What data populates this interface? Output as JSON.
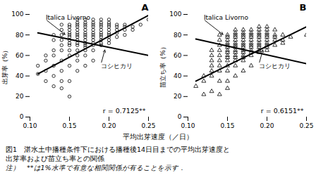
{
  "chart_data": [
    {
      "type": "scatter",
      "title": "A",
      "ylabel": "出芽率（%）",
      "marker": "circle",
      "color": "#000000",
      "x": [
        0.11,
        0.11,
        0.12,
        0.12,
        0.12,
        0.12,
        0.13,
        0.13,
        0.13,
        0.13,
        0.13,
        0.13,
        0.13,
        0.14,
        0.14,
        0.14,
        0.14,
        0.14,
        0.14,
        0.14,
        0.14,
        0.14,
        0.14,
        0.15,
        0.15,
        0.15,
        0.15,
        0.15,
        0.15,
        0.15,
        0.15,
        0.15,
        0.15,
        0.15,
        0.15,
        0.15,
        0.15,
        0.16,
        0.16,
        0.16,
        0.16,
        0.16,
        0.16,
        0.16,
        0.16,
        0.16,
        0.16,
        0.16,
        0.16,
        0.16,
        0.16,
        0.16,
        0.17,
        0.17,
        0.17,
        0.17,
        0.17,
        0.17,
        0.17,
        0.17,
        0.17,
        0.17,
        0.17,
        0.17,
        0.17,
        0.17,
        0.17,
        0.18,
        0.18,
        0.18,
        0.18,
        0.18,
        0.18,
        0.18,
        0.18,
        0.18,
        0.18,
        0.18,
        0.18,
        0.18,
        0.19,
        0.19,
        0.19,
        0.19,
        0.19,
        0.19,
        0.19,
        0.19,
        0.19,
        0.19,
        0.19,
        0.2,
        0.2,
        0.2,
        0.2,
        0.2,
        0.2,
        0.2,
        0.2,
        0.2,
        0.2,
        0.21,
        0.21,
        0.21,
        0.21,
        0.21,
        0.22,
        0.22,
        0.22,
        0.22,
        0.23,
        0.23,
        0.24,
        0.25
      ],
      "values": [
        50,
        42,
        55,
        45,
        35,
        60,
        40,
        50,
        60,
        65,
        30,
        75,
        80,
        45,
        55,
        65,
        70,
        75,
        80,
        85,
        90,
        35,
        28,
        50,
        60,
        65,
        70,
        72,
        75,
        78,
        80,
        82,
        85,
        88,
        90,
        35,
        20,
        55,
        60,
        65,
        70,
        72,
        75,
        78,
        80,
        82,
        85,
        88,
        90,
        92,
        95,
        45,
        60,
        65,
        68,
        70,
        72,
        75,
        78,
        80,
        82,
        85,
        88,
        90,
        92,
        95,
        50,
        65,
        70,
        72,
        75,
        78,
        80,
        82,
        85,
        88,
        90,
        92,
        95,
        55,
        70,
        72,
        75,
        78,
        80,
        82,
        85,
        88,
        90,
        92,
        95,
        72,
        75,
        78,
        80,
        82,
        85,
        88,
        90,
        92,
        95,
        78,
        82,
        85,
        88,
        90,
        80,
        85,
        88,
        90,
        85,
        88,
        90,
        95
      ],
      "lines": [
        {
          "x": [
            0.11,
            0.25
          ],
          "values": [
            42,
            99
          ],
          "color": "#000000"
        },
        {
          "x": [
            0.11,
            0.25
          ],
          "values": [
            82,
            60
          ],
          "color": "#000000"
        }
      ],
      "annotations": [
        {
          "text": "r = 0.7125**"
        },
        {
          "text": "コシヒカリ",
          "x": 0.19,
          "y": 52,
          "arrow_to": [
            0.195,
            66
          ]
        },
        {
          "text": "Italica Livorno",
          "x": 0.12,
          "y": 95,
          "arrow_to": [
            0.145,
            80
          ]
        }
      ],
      "xlim": [
        0.1,
        0.25
      ],
      "xticks": [
        {
          "value": 0.1,
          "label": "0.10"
        },
        0.15,
        {
          "value": 0.2,
          "label": "0.20"
        },
        0.25
      ],
      "ylim": [
        0,
        100
      ],
      "yticks": [
        0,
        20,
        40,
        60,
        80,
        100
      ]
    },
    {
      "type": "scatter",
      "title": "B",
      "ylabel": "苗立ち率（%）",
      "marker": "triangle",
      "color": "#000000",
      "x": [
        0.11,
        0.12,
        0.12,
        0.12,
        0.13,
        0.13,
        0.13,
        0.13,
        0.13,
        0.13,
        0.13,
        0.14,
        0.14,
        0.14,
        0.14,
        0.14,
        0.14,
        0.14,
        0.14,
        0.14,
        0.14,
        0.15,
        0.15,
        0.15,
        0.15,
        0.15,
        0.15,
        0.15,
        0.15,
        0.15,
        0.15,
        0.15,
        0.15,
        0.15,
        0.15,
        0.15,
        0.16,
        0.16,
        0.16,
        0.16,
        0.16,
        0.16,
        0.16,
        0.16,
        0.16,
        0.16,
        0.16,
        0.16,
        0.16,
        0.16,
        0.16,
        0.17,
        0.17,
        0.17,
        0.17,
        0.17,
        0.17,
        0.17,
        0.17,
        0.17,
        0.17,
        0.17,
        0.17,
        0.17,
        0.17,
        0.18,
        0.18,
        0.18,
        0.18,
        0.18,
        0.18,
        0.18,
        0.18,
        0.18,
        0.18,
        0.18,
        0.18,
        0.19,
        0.19,
        0.19,
        0.19,
        0.19,
        0.19,
        0.19,
        0.19,
        0.19,
        0.19,
        0.19,
        0.2,
        0.2,
        0.2,
        0.2,
        0.2,
        0.2,
        0.2,
        0.2,
        0.2,
        0.2,
        0.21,
        0.21,
        0.21,
        0.21,
        0.21,
        0.22,
        0.22,
        0.22,
        0.23,
        0.25
      ],
      "values": [
        30,
        35,
        40,
        22,
        40,
        45,
        50,
        55,
        60,
        65,
        25,
        45,
        50,
        55,
        60,
        65,
        70,
        75,
        80,
        35,
        22,
        45,
        50,
        55,
        58,
        60,
        63,
        65,
        68,
        70,
        72,
        75,
        78,
        80,
        35,
        28,
        50,
        55,
        58,
        60,
        63,
        65,
        68,
        70,
        72,
        75,
        78,
        80,
        82,
        85,
        40,
        55,
        58,
        60,
        63,
        65,
        68,
        70,
        72,
        75,
        78,
        80,
        82,
        85,
        45,
        60,
        63,
        65,
        68,
        70,
        72,
        75,
        78,
        80,
        82,
        85,
        50,
        63,
        65,
        68,
        70,
        72,
        75,
        78,
        80,
        82,
        85,
        88,
        65,
        68,
        70,
        72,
        75,
        78,
        80,
        82,
        85,
        88,
        70,
        75,
        78,
        80,
        85,
        72,
        75,
        80,
        78,
        80
      ],
      "lines": [
        {
          "x": [
            0.11,
            0.25
          ],
          "values": [
            35,
            88
          ],
          "color": "#000000"
        },
        {
          "x": [
            0.11,
            0.25
          ],
          "values": [
            76,
            52
          ],
          "color": "#000000"
        }
      ],
      "annotations": [
        {
          "text": "r = 0.6151**"
        },
        {
          "text": "コシヒカリ",
          "x": 0.19,
          "y": 52,
          "arrow_to": [
            0.195,
            66
          ]
        },
        {
          "text": "Italica Livorno",
          "x": 0.12,
          "y": 95,
          "arrow_to": [
            0.145,
            80
          ]
        }
      ],
      "xlim": [
        0.1,
        0.25
      ],
      "xticks": [
        {
          "value": 0.1,
          "label": "0.10"
        },
        0.15,
        {
          "value": 0.2,
          "label": "0.20"
        },
        0.25
      ],
      "ylim": [
        0,
        100
      ],
      "yticks": [
        0,
        20,
        40,
        60,
        80,
        100
      ]
    }
  ],
  "xlabel": "平均出芽速度（／日）",
  "caption": [
    "図1　湛水土中播種条件下における播種後14日目までの平均出芽速度と",
    "出芽率および苗立ち率との関係",
    "注）　**は1%水準で有意な相関関係が有ることを示す．"
  ]
}
